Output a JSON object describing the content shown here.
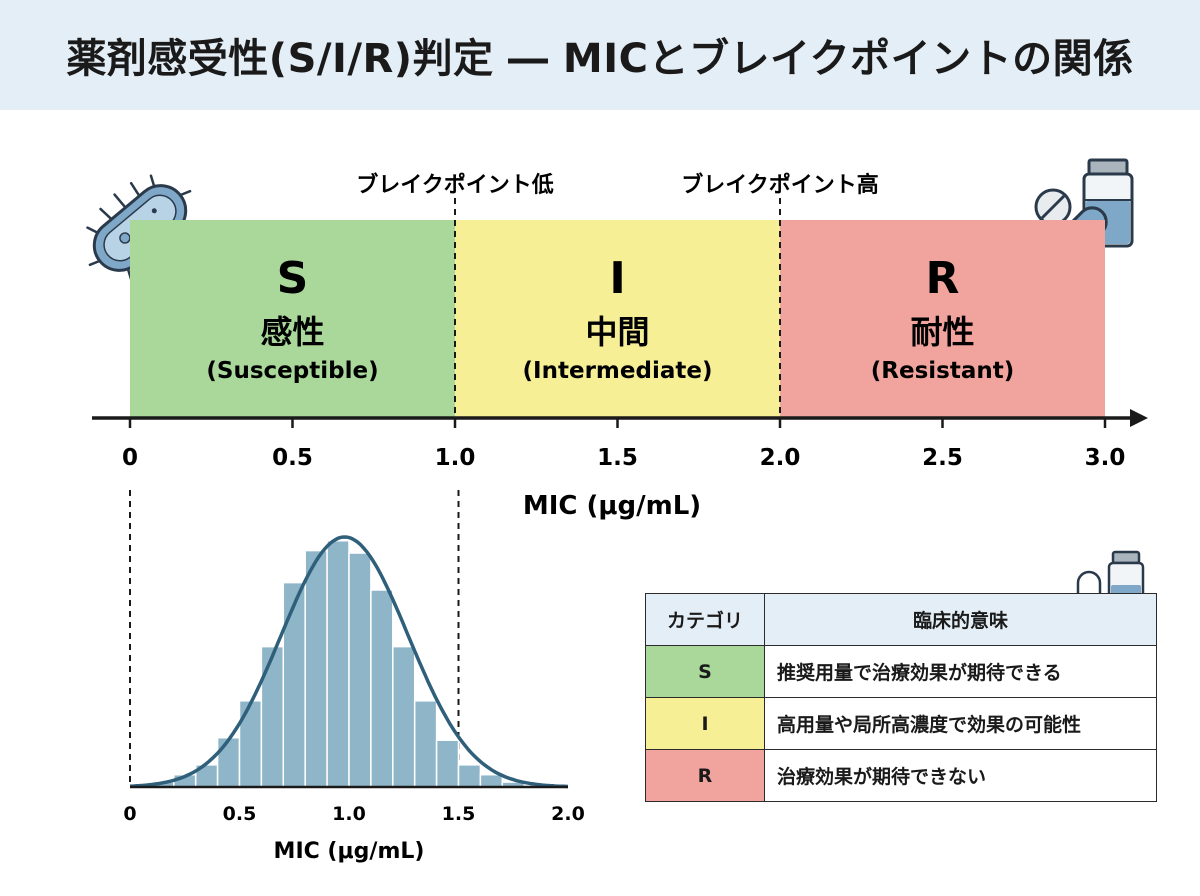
{
  "title": "薬剤感受性(S/I/R)判定 ― MICとブレイクポイントの関係",
  "colors": {
    "S": "#a9d89a",
    "I": "#f6ef96",
    "R": "#f1a49e",
    "header": "#e4eef6",
    "hist_bar": "#8fb5c8",
    "curve": "#2f5f7a"
  },
  "breakpoints": {
    "low_label": "ブレイクポイント低",
    "high_label": "ブレイクポイント高",
    "low_value": 1.0,
    "high_value": 2.0
  },
  "bands": [
    {
      "letter": "S",
      "ja": "感性",
      "en": "(Susceptible)",
      "from": 0,
      "to": 1.0
    },
    {
      "letter": "I",
      "ja": "中間",
      "en": "(Intermediate)",
      "from": 1.0,
      "to": 2.0
    },
    {
      "letter": "R",
      "ja": "耐性",
      "en": "(Resistant)",
      "from": 2.0,
      "to": 3.0
    }
  ],
  "main_axis": {
    "title": "MIC (μg/mL)",
    "range": [
      0,
      3.0
    ],
    "ticks": [
      {
        "value": 0,
        "label": "0"
      },
      {
        "value": 0.5,
        "label": "0.5"
      },
      {
        "value": 1.0,
        "label": "1.0"
      },
      {
        "value": 1.5,
        "label": "1.5"
      },
      {
        "value": 2.0,
        "label": "2.0"
      },
      {
        "value": 2.5,
        "label": "2.5"
      },
      {
        "value": 3.0,
        "label": "3.0"
      }
    ]
  },
  "histogram": {
    "axis_title": "MIC (μg/mL)",
    "range": [
      0,
      2.0
    ],
    "ticks": [
      {
        "value": 0,
        "label": "0"
      },
      {
        "value": 0.5,
        "label": "0.5"
      },
      {
        "value": 1.0,
        "label": "1.0"
      },
      {
        "value": 1.5,
        "label": "1.5"
      },
      {
        "value": 2.0,
        "label": "2.0"
      }
    ],
    "bin_width": 0.1,
    "bins": [
      {
        "start": 0.0,
        "height": 0
      },
      {
        "start": 0.1,
        "height": 0.02
      },
      {
        "start": 0.2,
        "height": 0.05
      },
      {
        "start": 0.3,
        "height": 0.09
      },
      {
        "start": 0.4,
        "height": 0.2
      },
      {
        "start": 0.5,
        "height": 0.35
      },
      {
        "start": 0.6,
        "height": 0.57
      },
      {
        "start": 0.7,
        "height": 0.83
      },
      {
        "start": 0.8,
        "height": 0.96
      },
      {
        "start": 0.9,
        "height": 1.0
      },
      {
        "start": 1.0,
        "height": 0.95
      },
      {
        "start": 1.1,
        "height": 0.8
      },
      {
        "start": 1.2,
        "height": 0.57
      },
      {
        "start": 1.3,
        "height": 0.35
      },
      {
        "start": 1.4,
        "height": 0.19
      },
      {
        "start": 1.5,
        "height": 0.09
      },
      {
        "start": 1.6,
        "height": 0.05
      },
      {
        "start": 1.7,
        "height": 0.02
      },
      {
        "start": 1.8,
        "height": 0.0
      },
      {
        "start": 1.9,
        "height": 0.0
      }
    ],
    "curve": {
      "mean": 0.98,
      "sd": 0.29,
      "peak": 1.0
    },
    "breakpoint_marker": 1.5
  },
  "legend": {
    "header_category": "カテゴリ",
    "header_meaning": "臨床的意味",
    "rows": [
      {
        "category": "S",
        "meaning": "推奨用量で治療効果が期待できる"
      },
      {
        "category": "I",
        "meaning": "高用量や局所高濃度で効果の可能性"
      },
      {
        "category": "R",
        "meaning": "治療効果が期待できない"
      }
    ]
  },
  "icons": [
    "bacterium-icon",
    "pill-icon",
    "capsule-icon",
    "vial-icon"
  ]
}
